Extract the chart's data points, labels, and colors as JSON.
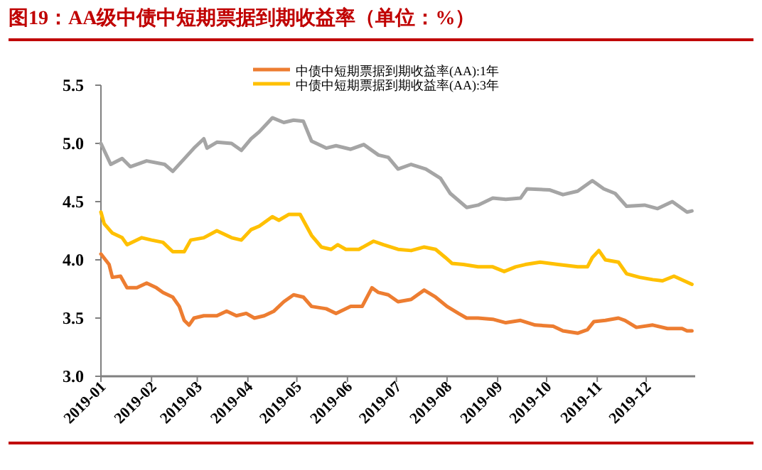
{
  "chart_data": {
    "type": "line",
    "title": "图19：AA级中债中短期票据到期收益率（单位：%）",
    "xlim": [
      "2019-01-01",
      "2019-12-31"
    ],
    "xticks": [
      "2019-01",
      "2019-02",
      "2019-03",
      "2019-04",
      "2019-05",
      "2019-06",
      "2019-07",
      "2019-08",
      "2019-09",
      "2019-10",
      "2019-11",
      "2019-12"
    ],
    "ylim": [
      3.0,
      5.5
    ],
    "yticks": [
      {
        "value": 3.0,
        "label": "3.0"
      },
      {
        "value": 3.5,
        "label": "3.5"
      },
      {
        "value": 4.0,
        "label": "4.0"
      },
      {
        "value": 4.5,
        "label": "4.5"
      },
      {
        "value": 5.0,
        "label": "5.0"
      },
      {
        "value": 5.5,
        "label": "5.5"
      }
    ],
    "grid": false,
    "legend": "top",
    "marker": "none",
    "line_style": "solid",
    "series": [
      {
        "color": "#a5a5a5",
        "x": [
          "2019-01-01",
          "2019-01-07",
          "2019-01-14",
          "2019-01-19",
          "2019-01-29",
          "2019-02-09",
          "2019-02-14",
          "2019-02-27",
          "2019-03-05",
          "2019-03-07",
          "2019-03-13",
          "2019-03-22",
          "2019-03-28",
          "2019-04-03",
          "2019-04-08",
          "2019-04-16",
          "2019-04-23",
          "2019-04-29",
          "2019-05-05",
          "2019-05-10",
          "2019-05-19",
          "2019-05-25",
          "2019-06-03",
          "2019-06-11",
          "2019-06-20",
          "2019-06-26",
          "2019-07-02",
          "2019-07-10",
          "2019-07-19",
          "2019-07-28",
          "2019-08-03",
          "2019-08-13",
          "2019-08-20",
          "2019-08-29",
          "2019-09-06",
          "2019-09-15",
          "2019-09-19",
          "2019-10-03",
          "2019-10-11",
          "2019-10-20",
          "2019-10-29",
          "2019-11-05",
          "2019-11-12",
          "2019-11-19",
          "2019-11-30",
          "2019-12-08",
          "2019-12-17",
          "2019-12-26",
          "2019-12-29"
        ],
        "values": [
          5.0,
          4.82,
          4.87,
          4.8,
          4.85,
          4.82,
          4.76,
          4.96,
          5.04,
          4.96,
          5.01,
          5.0,
          4.94,
          5.04,
          5.1,
          5.22,
          5.18,
          5.2,
          5.19,
          5.02,
          4.96,
          4.98,
          4.95,
          4.99,
          4.9,
          4.88,
          4.78,
          4.82,
          4.78,
          4.7,
          4.57,
          4.45,
          4.47,
          4.53,
          4.52,
          4.53,
          4.61,
          4.6,
          4.56,
          4.59,
          4.68,
          4.61,
          4.57,
          4.46,
          4.47,
          4.44,
          4.5,
          4.41,
          4.42
        ]
      },
      {
        "name": "中债中短期票据到期收益率(AA):1年",
        "color": "#ed7d31",
        "x": [
          "2019-01-01",
          "2019-01-06",
          "2019-01-08",
          "2019-01-13",
          "2019-01-17",
          "2019-01-23",
          "2019-01-29",
          "2019-02-04",
          "2019-02-08",
          "2019-02-14",
          "2019-02-18",
          "2019-02-21",
          "2019-02-24",
          "2019-02-27",
          "2019-03-05",
          "2019-03-13",
          "2019-03-19",
          "2019-03-25",
          "2019-03-31",
          "2019-04-05",
          "2019-04-11",
          "2019-04-17",
          "2019-04-23",
          "2019-04-29",
          "2019-05-05",
          "2019-05-10",
          "2019-05-19",
          "2019-05-25",
          "2019-06-03",
          "2019-06-10",
          "2019-06-16",
          "2019-06-20",
          "2019-06-26",
          "2019-07-02",
          "2019-07-10",
          "2019-07-18",
          "2019-07-25",
          "2019-08-01",
          "2019-08-08",
          "2019-08-13",
          "2019-08-20",
          "2019-08-29",
          "2019-09-06",
          "2019-09-15",
          "2019-09-24",
          "2019-10-05",
          "2019-10-11",
          "2019-10-20",
          "2019-10-26",
          "2019-10-30",
          "2019-11-06",
          "2019-11-14",
          "2019-11-18",
          "2019-11-25",
          "2019-12-05",
          "2019-12-14",
          "2019-12-23",
          "2019-12-26",
          "2019-12-29"
        ],
        "values": [
          4.05,
          3.96,
          3.85,
          3.86,
          3.76,
          3.76,
          3.8,
          3.76,
          3.72,
          3.68,
          3.6,
          3.48,
          3.44,
          3.5,
          3.52,
          3.52,
          3.56,
          3.52,
          3.54,
          3.5,
          3.52,
          3.56,
          3.64,
          3.7,
          3.68,
          3.6,
          3.58,
          3.54,
          3.6,
          3.6,
          3.76,
          3.72,
          3.7,
          3.64,
          3.66,
          3.74,
          3.68,
          3.6,
          3.54,
          3.5,
          3.5,
          3.49,
          3.46,
          3.48,
          3.44,
          3.43,
          3.39,
          3.37,
          3.4,
          3.47,
          3.48,
          3.5,
          3.48,
          3.42,
          3.44,
          3.41,
          3.41,
          3.39,
          3.39
        ]
      },
      {
        "name": "中债中短期票据到期收益率(AA):3年",
        "color": "#ffc000",
        "x": [
          "2019-01-01",
          "2019-01-03",
          "2019-01-08",
          "2019-01-14",
          "2019-01-17",
          "2019-01-26",
          "2019-02-01",
          "2019-02-08",
          "2019-02-14",
          "2019-02-21",
          "2019-02-25",
          "2019-03-05",
          "2019-03-13",
          "2019-03-16",
          "2019-03-22",
          "2019-03-28",
          "2019-04-03",
          "2019-04-08",
          "2019-04-16",
          "2019-04-20",
          "2019-04-26",
          "2019-05-03",
          "2019-05-10",
          "2019-05-16",
          "2019-05-22",
          "2019-05-26",
          "2019-05-31",
          "2019-06-08",
          "2019-06-17",
          "2019-06-23",
          "2019-07-02",
          "2019-07-10",
          "2019-07-18",
          "2019-07-25",
          "2019-07-31",
          "2019-08-04",
          "2019-08-11",
          "2019-08-20",
          "2019-08-29",
          "2019-09-05",
          "2019-09-12",
          "2019-09-18",
          "2019-09-27",
          "2019-10-08",
          "2019-10-20",
          "2019-10-26",
          "2019-10-29",
          "2019-11-02",
          "2019-11-06",
          "2019-11-14",
          "2019-11-19",
          "2019-11-27",
          "2019-12-05",
          "2019-12-11",
          "2019-12-18",
          "2019-12-29"
        ],
        "values": [
          4.41,
          4.31,
          4.23,
          4.19,
          4.13,
          4.19,
          4.17,
          4.15,
          4.07,
          4.07,
          4.17,
          4.19,
          4.25,
          4.23,
          4.19,
          4.17,
          4.26,
          4.29,
          4.37,
          4.34,
          4.39,
          4.39,
          4.21,
          4.11,
          4.09,
          4.13,
          4.09,
          4.09,
          4.16,
          4.13,
          4.09,
          4.08,
          4.11,
          4.09,
          4.02,
          3.97,
          3.96,
          3.94,
          3.94,
          3.9,
          3.94,
          3.96,
          3.98,
          3.96,
          3.94,
          3.94,
          4.02,
          4.08,
          4.0,
          3.98,
          3.88,
          3.85,
          3.83,
          3.82,
          3.86,
          3.79
        ]
      }
    ]
  }
}
